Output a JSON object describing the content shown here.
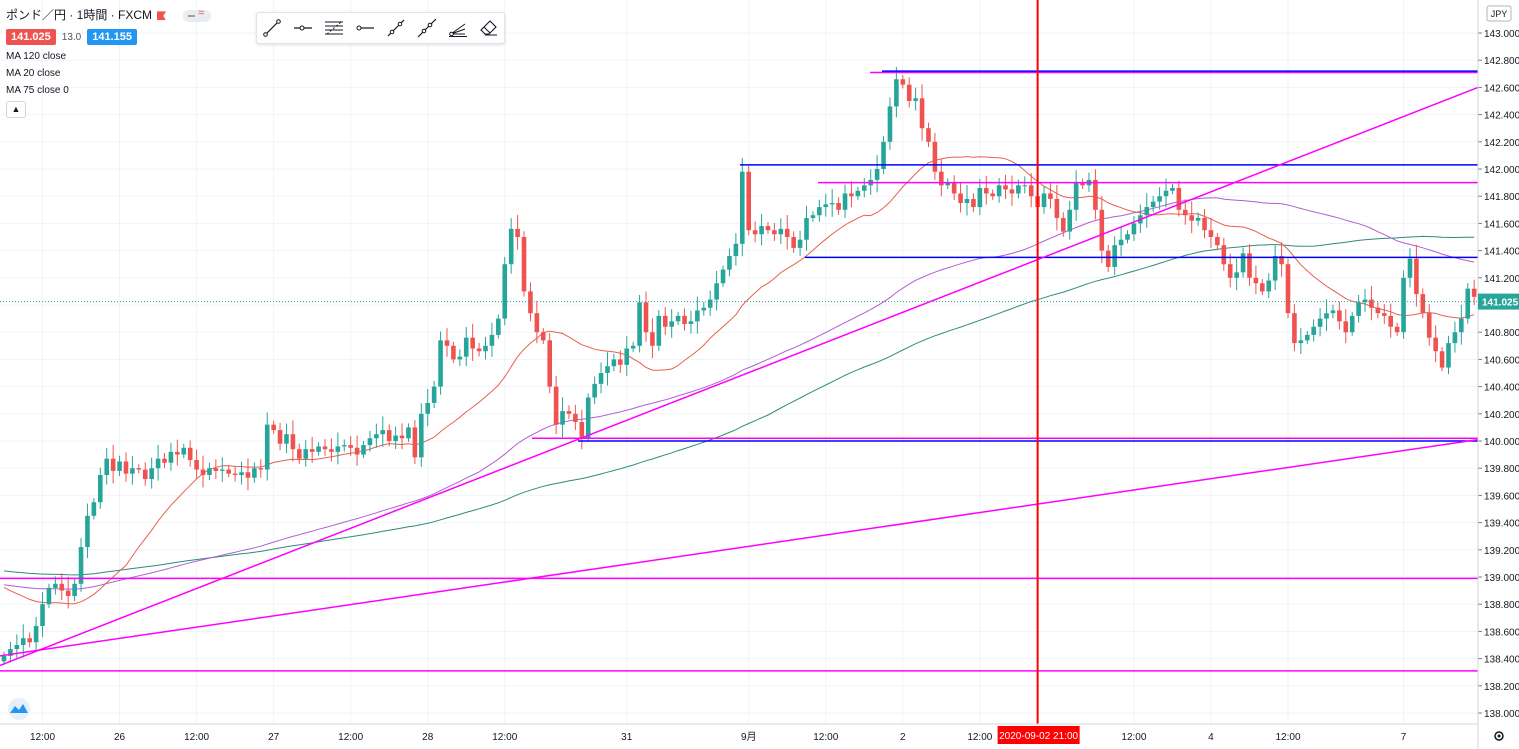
{
  "legend": {
    "symbol": "ポンド／円 · 1時間 · FXCM",
    "bid": "141.025",
    "spread": "13.0",
    "ask": "141.155",
    "indicators": [
      "MA 120 close",
      "MA 20 close",
      "MA 75 close 0"
    ]
  },
  "toolbar": {
    "tools": [
      "trend-line-icon",
      "horizontal-ray-icon",
      "fib-retracement-icon",
      "horizontal-line-icon",
      "ray-icon",
      "extended-line-icon",
      "pitchfork-icon",
      "eraser-icon"
    ]
  },
  "colors": {
    "up": "#26a69a",
    "down": "#ef5350",
    "ma120": "#2e8b7a",
    "ma20": "#e8604d",
    "ma75": "#b05fd0",
    "magenta_line": "#ff00ff",
    "blue_line": "#0000ff",
    "red_line": "#ff0000"
  },
  "chart_data": {
    "type": "candlestick",
    "symbol": "GBPJPY",
    "timeframe": "1h",
    "ylim": [
      137.95,
      143.2
    ],
    "y_ticks": [
      "143.000",
      "142.800",
      "142.600",
      "142.400",
      "142.200",
      "142.000",
      "141.800",
      "141.600",
      "141.400",
      "141.200",
      "141.000",
      "140.800",
      "140.600",
      "140.400",
      "140.200",
      "140.000",
      "139.800",
      "139.600",
      "139.400",
      "139.200",
      "139.000",
      "138.800",
      "138.600",
      "138.400",
      "138.200",
      "138.000"
    ],
    "x_ticks": [
      {
        "label": "12:00",
        "bar": 6
      },
      {
        "label": "26",
        "bar": 18
      },
      {
        "label": "12:00",
        "bar": 30
      },
      {
        "label": "27",
        "bar": 42
      },
      {
        "label": "12:00",
        "bar": 54
      },
      {
        "label": "28",
        "bar": 66
      },
      {
        "label": "12:00",
        "bar": 78
      },
      {
        "label": "31",
        "bar": 97
      },
      {
        "label": "9月",
        "bar": 116
      },
      {
        "label": "12:00",
        "bar": 128
      },
      {
        "label": "2",
        "bar": 140
      },
      {
        "label": "12:00",
        "bar": 152
      },
      {
        "label": "12:00",
        "bar": 176
      },
      {
        "label": "4",
        "bar": 188
      },
      {
        "label": "12:00",
        "bar": 200
      },
      {
        "label": "7",
        "bar": 218
      }
    ],
    "crosshair": {
      "bar": 161,
      "label": "2020-09-02   21:00"
    },
    "last_price": "141.025",
    "currency_badge": "JPY",
    "closes": [
      138.42,
      138.47,
      138.5,
      138.55,
      138.52,
      138.64,
      138.8,
      138.92,
      138.95,
      138.9,
      138.86,
      138.95,
      139.22,
      139.45,
      139.55,
      139.75,
      139.87,
      139.78,
      139.85,
      139.76,
      139.8,
      139.79,
      139.72,
      139.8,
      139.87,
      139.84,
      139.92,
      139.9,
      139.95,
      139.86,
      139.79,
      139.75,
      139.8,
      139.78,
      139.79,
      139.76,
      139.75,
      139.77,
      139.73,
      139.8,
      139.79,
      140.12,
      140.08,
      139.98,
      140.05,
      139.94,
      139.87,
      139.94,
      139.92,
      139.96,
      139.94,
      139.92,
      139.96,
      139.97,
      139.95,
      139.9,
      139.97,
      140.02,
      140.05,
      140.08,
      140.0,
      140.04,
      140.02,
      140.1,
      139.88,
      140.2,
      140.28,
      140.4,
      140.74,
      140.7,
      140.6,
      140.62,
      140.76,
      140.68,
      140.66,
      140.7,
      140.78,
      140.9,
      141.3,
      141.56,
      141.5,
      141.1,
      140.94,
      140.8,
      140.74,
      140.4,
      140.12,
      140.22,
      140.2,
      140.14,
      140.02,
      140.32,
      140.42,
      140.5,
      140.55,
      140.6,
      140.56,
      140.68,
      140.7,
      141.02,
      140.8,
      140.7,
      140.92,
      140.84,
      140.88,
      140.92,
      140.86,
      140.88,
      140.96,
      140.98,
      141.04,
      141.16,
      141.26,
      141.36,
      141.45,
      141.98,
      141.55,
      141.52,
      141.58,
      141.55,
      141.52,
      141.56,
      141.5,
      141.42,
      141.48,
      141.64,
      141.66,
      141.72,
      141.74,
      141.75,
      141.7,
      141.82,
      141.8,
      141.84,
      141.88,
      141.92,
      142.0,
      142.2,
      142.46,
      142.66,
      142.62,
      142.5,
      142.52,
      142.3,
      142.2,
      141.98,
      141.88,
      141.9,
      141.82,
      141.75,
      141.78,
      141.72,
      141.86,
      141.82,
      141.8,
      141.88,
      141.85,
      141.82,
      141.88,
      141.88,
      141.8,
      141.72,
      141.82,
      141.78,
      141.64,
      141.54,
      141.7,
      141.9,
      141.88,
      141.92,
      141.7,
      141.4,
      141.28,
      141.44,
      141.48,
      141.52,
      141.6,
      141.66,
      141.72,
      141.76,
      141.8,
      141.84,
      141.86,
      141.7,
      141.66,
      141.62,
      141.64,
      141.55,
      141.5,
      141.44,
      141.3,
      141.2,
      141.24,
      141.38,
      141.2,
      141.16,
      141.1,
      141.18,
      141.36,
      141.3,
      140.94,
      140.72,
      140.74,
      140.78,
      140.84,
      140.9,
      140.94,
      140.96,
      140.88,
      140.8,
      140.92,
      141.02,
      141.04,
      140.98,
      140.94,
      140.92,
      140.84,
      140.8,
      141.2,
      141.34,
      141.08,
      140.94,
      140.76,
      140.66,
      140.54,
      140.72,
      140.8,
      140.9,
      141.12,
      141.06
    ]
  }
}
